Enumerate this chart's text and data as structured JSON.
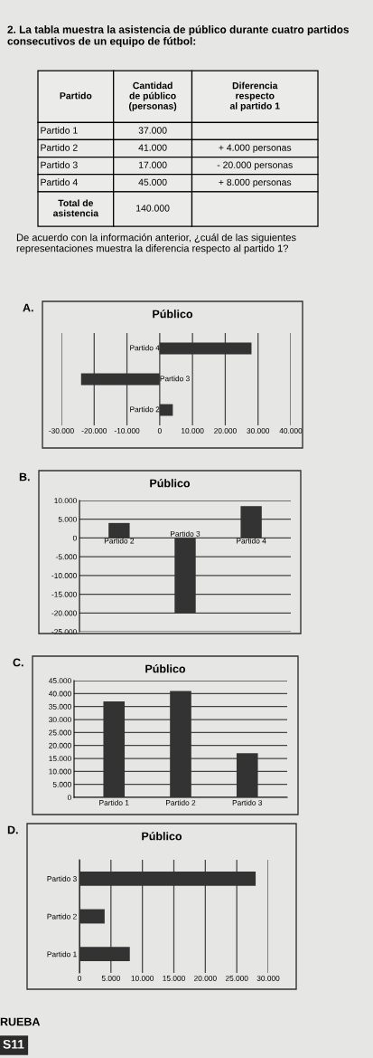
{
  "chart_data": [
    {
      "type": "other",
      "title": "2. La tabla muestra la asistencia de público durante cuatro partidos consecutivos de un equipo de fútbol:",
      "subtitle": "De acuerdo con la información anterior, ¿cuál de las siguientes representaciones muestra la diferencia respecto al partido 1?",
      "annotations": [
        "Partido",
        "Cantidad\nde público\n(personas)",
        "Diferencia\nrespecto\nal partido 1",
        "Partido 1",
        "37.000",
        null,
        "Partido 2",
        "41.000",
        "+ 4.000 personas",
        "Partido 3",
        "17.000",
        "- 20.000 personas",
        "Partido 4",
        "45.000",
        "+ 8.000 personas",
        "Total de\nasistencia",
        "140.000",
        null
      ]
    },
    {
      "type": "bar",
      "orientation": "horizontal",
      "title": "Público",
      "annotations": [
        "A."
      ],
      "categories": [
        "Partido 4",
        "Partido 3",
        "Partido 2"
      ],
      "values": [
        28000,
        -24000,
        4000
      ],
      "color": "#333333",
      "xlim": [
        -30000,
        40000
      ],
      "xticks": [
        {
          "value": -30000,
          "label": "-30.000"
        },
        {
          "value": -20000,
          "label": "-20.000"
        },
        {
          "value": -10000,
          "label": "-10.000"
        },
        0,
        {
          "value": 10000,
          "label": "10.000"
        },
        {
          "value": 20000,
          "label": "20.000"
        },
        {
          "value": 30000,
          "label": "30.000"
        },
        {
          "value": 40000,
          "label": "40.000"
        }
      ],
      "grid": "x",
      "tick_labels": "x"
    },
    {
      "type": "bar",
      "title": "Público",
      "annotations": [
        "B."
      ],
      "categories": [
        "Partido 2",
        "Partido 3",
        "Partido 4"
      ],
      "values": [
        4000,
        -20000,
        8500
      ],
      "color": "#333333",
      "ylim": [
        -25000,
        10000
      ],
      "yticks": [
        {
          "value": -25000,
          "label": "-25.000"
        },
        {
          "value": -20000,
          "label": "-20.000"
        },
        {
          "value": -15000,
          "label": "-15.000"
        },
        {
          "value": -10000,
          "label": "-10.000"
        },
        {
          "value": -5000,
          "label": "-5.000"
        },
        0,
        {
          "value": 5000,
          "label": "5.000"
        },
        {
          "value": 10000,
          "label": "10.000"
        }
      ],
      "grid": "y",
      "tick_labels": "y"
    },
    {
      "type": "bar",
      "title": "Público",
      "annotations": [
        "C."
      ],
      "categories": [
        "Partido 1",
        "Partido 2",
        "Partido 3"
      ],
      "values": [
        37000,
        41000,
        17000
      ],
      "color": "#333333",
      "ylim": [
        0,
        45000
      ],
      "yticks": [
        0,
        {
          "value": 5000,
          "label": "5.000"
        },
        {
          "value": 10000,
          "label": "10.000"
        },
        {
          "value": 15000,
          "label": "15.000"
        },
        {
          "value": 20000,
          "label": "20.000"
        },
        {
          "value": 25000,
          "label": "25.000"
        },
        {
          "value": 30000,
          "label": "30.000"
        },
        {
          "value": 35000,
          "label": "35.000"
        },
        {
          "value": 40000,
          "label": "40.000"
        },
        {
          "value": 45000,
          "label": "45.000"
        }
      ],
      "grid": "y"
    },
    {
      "type": "bar",
      "orientation": "horizontal",
      "title": "Público",
      "annotations": [
        "D."
      ],
      "categories": [
        "Partido 3",
        "Partido 2",
        "Partido 1"
      ],
      "values": [
        28000,
        4000,
        8000
      ],
      "color": "#333333",
      "xlim": [
        0,
        30000
      ],
      "xticks": [
        0,
        {
          "value": 5000,
          "label": "5.000"
        },
        {
          "value": 10000,
          "label": "10.000"
        },
        {
          "value": 15000,
          "label": "15.000"
        },
        {
          "value": 20000,
          "label": "20.000"
        },
        {
          "value": 25000,
          "label": "25.000"
        },
        {
          "value": 30000,
          "label": "30.000"
        }
      ],
      "grid": "x"
    },
    {
      "type": "other",
      "annotations": [
        "RUEBA",
        "S11"
      ]
    }
  ]
}
